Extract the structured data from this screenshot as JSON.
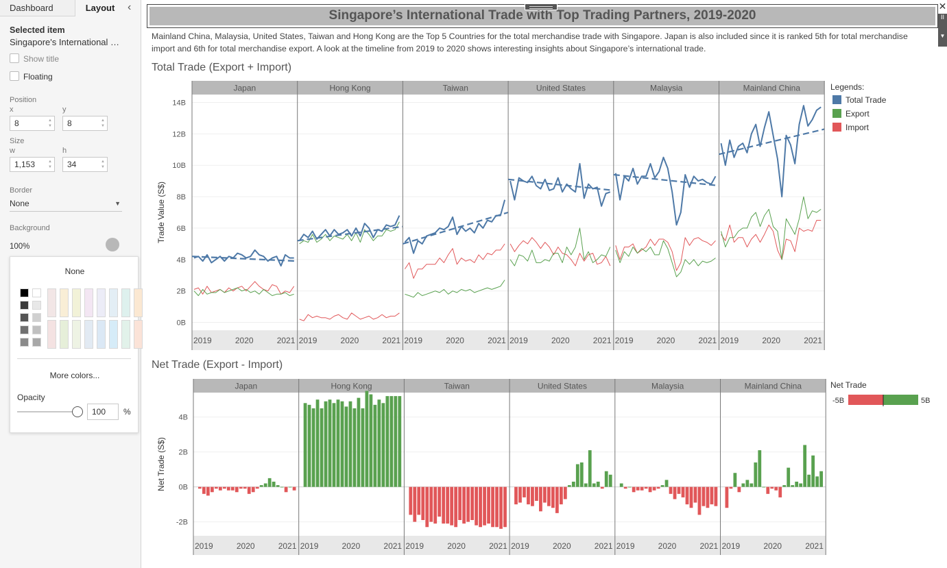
{
  "panel": {
    "tabs": [
      "Dashboard",
      "Layout"
    ],
    "selected_item_heading": "Selected item",
    "selected_item_name": "Singapore's International …",
    "show_title_label": "Show title",
    "floating_label": "Floating",
    "position_label": "Position",
    "x_label": "x",
    "y_label": "y",
    "x_value": "8",
    "y_value": "8",
    "size_label": "Size",
    "w_label": "w",
    "h_label": "h",
    "w_value": "1,153",
    "h_value": "34",
    "border_label": "Border",
    "border_value": "None",
    "background_label": "Background",
    "background_value": "100%",
    "color_picker": {
      "none_label": "None",
      "more_colors_label": "More colors...",
      "opacity_label": "Opacity",
      "opacity_value": "100",
      "opacity_unit": "%",
      "opacity_fraction": 1.0,
      "grays": [
        "#000000",
        "#ffffff",
        "#3a3a3a",
        "#e8e8e8",
        "#555555",
        "#d0d0d0",
        "#707070",
        "#c0c0c0",
        "#8a8a8a",
        "#a8a8a8"
      ],
      "pastels_top": [
        "#f2e6e6",
        "#f9eed6",
        "#f2f2d8",
        "#f3e6f3",
        "#ececf7",
        "#e3eef5",
        "#def1ee",
        "#fbe8d2"
      ],
      "pastels_bottom": [
        "#f4e2e2",
        "#e6efd9",
        "#eef3e4",
        "#e2eaf3",
        "#dbe8f5",
        "#d6ecf8",
        "#e2f2ea",
        "#fbe3d8"
      ]
    }
  },
  "dashboard": {
    "title": "Singapore’s International Trade with Top Trading Partners, 2019-2020",
    "description": "Mainland China, Malaysia, United States, Taiwan and Hong Kong are the Top 5 Countries for the total merchandise trade with Singapore. Japan is also included since it is ranked 5th for total merchandise import and 6th for total merchandise export. A look at the timeline from 2019 to 2020 shows interesting insights about Singapore’s international trade.",
    "total_trade_title": "Total Trade (Export + Import)",
    "net_trade_title": "Net Trade (Export - Import)",
    "more_tab_glyph": "II",
    "close_glyph": "✕"
  },
  "colors": {
    "total": "#4e79a7",
    "export": "#59a14f",
    "import": "#e15759",
    "panel_header": "#b8b8b8",
    "axis_band": "#e8e8e8"
  },
  "chart_data": [
    {
      "type": "line",
      "title": "Total Trade (Export + Import)",
      "ylabel": "Trade Value (S$)",
      "ylim": [
        -0.5,
        14.5
      ],
      "yticks": [
        0,
        2,
        4,
        6,
        8,
        10,
        12,
        14
      ],
      "ytick_labels": [
        "0B",
        "2B",
        "4B",
        "6B",
        "8B",
        "10B",
        "12B",
        "14B"
      ],
      "xticks": [
        "2019",
        "2020",
        "2021"
      ],
      "months": 24,
      "units": "billion S$",
      "legend_title": "Legends:",
      "legend": [
        "Total Trade",
        "Export",
        "Import"
      ],
      "trend_lines": "Total Trade per country (dashed)",
      "panels": [
        {
          "country": "Japan",
          "total": [
            4.1,
            4.2,
            3.9,
            4.3,
            3.8,
            4.0,
            4.2,
            3.9,
            4.2,
            4.1,
            4.4,
            4.3,
            4.1,
            4.2,
            4.6,
            4.3,
            4.2,
            3.9,
            4.1,
            4.2,
            3.6,
            4.3,
            4.1,
            4.1
          ],
          "export": [
            2.0,
            1.7,
            2.1,
            1.8,
            1.9,
            1.9,
            2.1,
            1.9,
            2.0,
            2.1,
            2.2,
            2.0,
            2.1,
            1.9,
            2.0,
            1.8,
            2.1,
            1.9,
            1.7,
            1.8,
            1.8,
            1.9,
            1.7,
            1.8
          ],
          "import": [
            2.1,
            2.2,
            1.8,
            2.3,
            1.9,
            2.0,
            2.1,
            1.9,
            2.2,
            2.0,
            2.2,
            2.3,
            2.0,
            2.3,
            2.6,
            2.3,
            2.1,
            2.0,
            2.4,
            2.3,
            1.8,
            2.0,
            1.9,
            2.3
          ],
          "trend": [
            4.2,
            3.9
          ]
        },
        {
          "country": "Hong Kong",
          "total": [
            5.2,
            5.6,
            5.4,
            5.8,
            5.3,
            5.6,
            5.9,
            5.5,
            5.9,
            5.6,
            5.7,
            5.9,
            5.5,
            6.0,
            5.5,
            6.3,
            6.0,
            5.4,
            5.9,
            5.8,
            6.2,
            6.1,
            6.2,
            6.8
          ],
          "export": [
            5.0,
            5.2,
            5.1,
            5.6,
            5.1,
            5.3,
            5.6,
            5.2,
            5.5,
            5.4,
            5.3,
            5.6,
            5.2,
            5.7,
            5.1,
            5.9,
            5.6,
            5.2,
            5.5,
            5.5,
            5.9,
            5.8,
            5.9,
            6.4
          ],
          "import": [
            0.2,
            0.1,
            0.5,
            0.3,
            0.4,
            0.3,
            0.3,
            0.2,
            0.4,
            0.5,
            0.3,
            0.2,
            0.6,
            0.4,
            0.2,
            0.3,
            0.4,
            0.2,
            0.3,
            0.5,
            0.3,
            0.4,
            0.4,
            0.6
          ],
          "trend": [
            5.2,
            6.1
          ]
        },
        {
          "country": "Taiwan",
          "total": [
            5.1,
            5.4,
            4.4,
            5.2,
            5.0,
            5.5,
            5.6,
            5.7,
            6.0,
            5.9,
            6.1,
            6.7,
            5.6,
            6.1,
            5.8,
            6.0,
            5.7,
            6.3,
            6.0,
            6.5,
            6.4,
            6.8,
            6.8,
            7.8
          ],
          "export": [
            1.8,
            1.7,
            1.6,
            1.9,
            1.7,
            1.8,
            1.9,
            2.0,
            1.9,
            2.1,
            1.8,
            2.0,
            1.9,
            2.1,
            2.0,
            2.1,
            1.9,
            2.0,
            2.1,
            2.2,
            2.1,
            2.2,
            2.3,
            2.7
          ],
          "import": [
            3.4,
            3.8,
            2.8,
            3.4,
            3.4,
            3.7,
            3.7,
            3.7,
            4.1,
            3.8,
            4.3,
            4.7,
            3.7,
            4.1,
            3.9,
            4.0,
            3.8,
            4.3,
            4.0,
            4.4,
            4.3,
            4.6,
            4.6,
            5.0
          ],
          "trend": [
            5.0,
            7.0
          ]
        },
        {
          "country": "United States",
          "total": [
            9.0,
            7.8,
            9.2,
            9.0,
            8.9,
            9.3,
            8.7,
            8.5,
            9.1,
            8.4,
            8.5,
            9.2,
            8.3,
            8.8,
            8.5,
            8.3,
            10.1,
            7.9,
            8.8,
            8.5,
            8.6,
            7.4,
            8.2,
            8.3
          ],
          "export": [
            4.0,
            3.6,
            4.3,
            4.2,
            3.9,
            4.6,
            3.8,
            3.8,
            4.0,
            3.9,
            4.4,
            4.4,
            3.8,
            4.8,
            4.3,
            4.8,
            6.0,
            4.0,
            4.5,
            3.8,
            4.0,
            4.3,
            4.2,
            4.8
          ],
          "import": [
            5.0,
            4.5,
            4.9,
            5.2,
            5.0,
            5.4,
            5.1,
            4.7,
            5.1,
            4.8,
            4.3,
            4.8,
            4.4,
            4.3,
            4.0,
            3.6,
            4.4,
            3.9,
            4.3,
            4.4,
            3.7,
            3.8,
            4.2,
            3.6
          ],
          "trend": [
            9.1,
            8.4
          ]
        },
        {
          "country": "Malaysia",
          "total": [
            9.5,
            7.8,
            9.3,
            9.0,
            9.8,
            8.8,
            9.3,
            9.3,
            10.1,
            9.2,
            9.6,
            10.5,
            9.8,
            8.3,
            6.2,
            7.0,
            9.4,
            8.6,
            9.3,
            9.0,
            9.1,
            8.9,
            8.8,
            9.3
          ],
          "export": [
            4.6,
            3.8,
            4.5,
            4.2,
            4.8,
            4.4,
            4.7,
            4.5,
            4.8,
            4.3,
            4.3,
            5.2,
            4.7,
            3.8,
            2.9,
            3.2,
            4.0,
            3.7,
            4.0,
            3.6,
            3.9,
            3.8,
            3.9,
            4.1
          ],
          "import": [
            4.9,
            4.0,
            4.8,
            4.8,
            5.0,
            4.4,
            4.6,
            4.8,
            5.3,
            4.9,
            5.3,
            5.3,
            5.1,
            4.5,
            3.3,
            3.8,
            5.4,
            4.9,
            5.3,
            5.4,
            5.2,
            5.1,
            4.9,
            5.2
          ],
          "trend": [
            9.4,
            8.7
          ]
        },
        {
          "country": "Mainland China",
          "total": [
            11.4,
            10.0,
            11.6,
            10.5,
            11.2,
            11.4,
            10.8,
            12.0,
            12.6,
            11.2,
            12.4,
            13.4,
            11.9,
            10.4,
            8.0,
            11.9,
            11.3,
            10.1,
            12.6,
            13.8,
            12.5,
            12.9,
            13.5,
            13.7
          ],
          "export": [
            5.8,
            4.8,
            5.4,
            5.4,
            5.8,
            6.0,
            6.0,
            6.7,
            7.0,
            6.1,
            6.8,
            7.2,
            6.1,
            5.8,
            4.0,
            6.6,
            6.1,
            5.6,
            6.6,
            8.0,
            6.6,
            7.1,
            7.0,
            7.2
          ],
          "import": [
            5.6,
            5.2,
            6.2,
            5.1,
            5.4,
            5.4,
            4.8,
            5.3,
            5.6,
            5.1,
            5.6,
            6.2,
            5.8,
            4.6,
            4.0,
            5.3,
            5.2,
            4.5,
            6.0,
            5.8,
            5.9,
            5.8,
            6.5,
            6.5
          ],
          "trend": [
            10.7,
            12.3
          ]
        }
      ]
    },
    {
      "type": "bar",
      "title": "Net Trade (Export - Import)",
      "ylabel": "Net Trade (S$)",
      "ylim": [
        -2.8,
        5.4
      ],
      "yticks": [
        -2,
        0,
        2,
        4
      ],
      "ytick_labels": [
        "-2B",
        "0B",
        "2B",
        "4B"
      ],
      "xticks": [
        "2019",
        "2020",
        "2021"
      ],
      "units": "billion S$",
      "legend_title": "Net Trade",
      "color_scale": {
        "min_label": "-5B",
        "max_label": "5B",
        "min": -5,
        "max": 5
      },
      "panels": [
        {
          "country": "Japan",
          "values": [
            -0.1,
            -0.4,
            -0.5,
            -0.3,
            -0.1,
            -0.2,
            -0.1,
            -0.2,
            -0.2,
            -0.3,
            -0.1,
            -0.1,
            -0.4,
            -0.3,
            -0.1,
            0.1,
            0.2,
            0.5,
            0.3,
            0.1,
            0.0,
            -0.3,
            0.0,
            -0.2
          ]
        },
        {
          "country": "Hong Kong",
          "values": [
            4.8,
            4.7,
            4.5,
            5.0,
            4.5,
            4.9,
            5.0,
            4.8,
            5.0,
            4.9,
            4.6,
            4.9,
            4.5,
            5.1,
            4.5,
            5.5,
            5.3,
            4.7,
            5.0,
            4.8,
            5.2,
            5.2,
            5.2,
            5.2
          ]
        },
        {
          "country": "Taiwan",
          "values": [
            -1.6,
            -2.0,
            -1.6,
            -1.9,
            -2.3,
            -2.0,
            -2.1,
            -1.7,
            -2.1,
            -2.1,
            -2.2,
            -2.3,
            -1.9,
            -2.1,
            -2.0,
            -1.9,
            -2.2,
            -2.3,
            -2.2,
            -2.1,
            -2.3,
            -2.3,
            -2.4,
            -2.3
          ]
        },
        {
          "country": "United States",
          "values": [
            -1.0,
            -0.9,
            -0.6,
            -1.0,
            -1.1,
            -0.8,
            -1.4,
            -0.9,
            -1.1,
            -1.2,
            -1.5,
            -1.0,
            -0.7,
            0.1,
            0.3,
            1.3,
            1.4,
            0.2,
            2.1,
            0.2,
            0.3,
            -0.1,
            0.9,
            0.7
          ]
        },
        {
          "country": "Malaysia",
          "values": [
            0.2,
            -0.1,
            0.0,
            -0.3,
            -0.2,
            -0.2,
            -0.1,
            -0.3,
            -0.2,
            -0.1,
            0.1,
            0.4,
            -0.4,
            -0.7,
            -0.4,
            -0.6,
            -1.0,
            -1.2,
            -0.9,
            -1.6,
            -1.1,
            -1.2,
            -1.0,
            -1.1
          ]
        },
        {
          "country": "Mainland China",
          "values": [
            -1.2,
            -0.1,
            0.8,
            -0.3,
            0.2,
            0.4,
            0.2,
            1.4,
            2.1,
            0.0,
            -0.4,
            -0.1,
            -0.2,
            -0.6,
            0.1,
            1.1,
            0.1,
            0.3,
            0.2,
            2.4,
            0.7,
            1.8,
            0.6,
            0.9
          ]
        }
      ]
    }
  ]
}
